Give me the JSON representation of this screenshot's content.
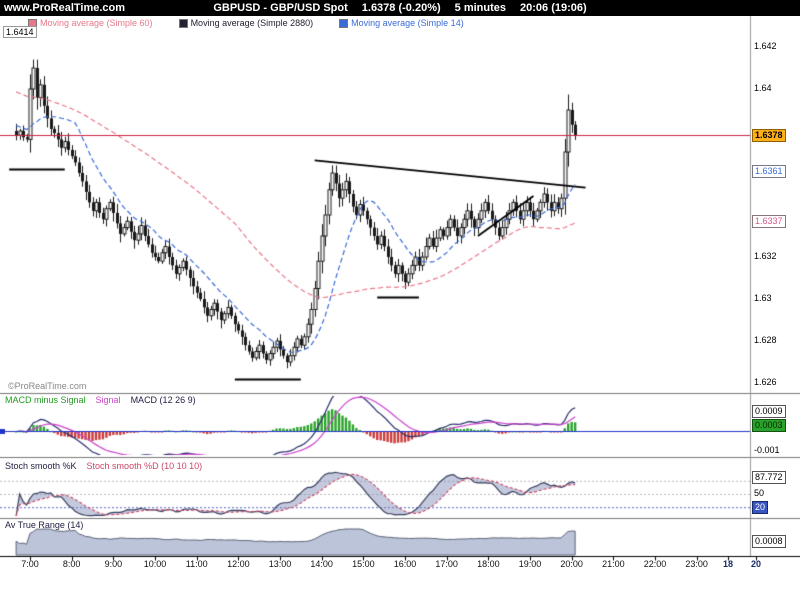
{
  "header": {
    "site": "www.ProRealTime.com",
    "title": "GBPUSD - GBP/USD Spot",
    "price": "1.6378 (-0.20%)",
    "timeframe": "5 minutes",
    "clock": "20:06 (19:06)"
  },
  "ma_legend": [
    {
      "label": "Moving average (Simple 60)",
      "color": "#e8788a"
    },
    {
      "label": "Moving average (Simple 2880)",
      "color": "#222233"
    },
    {
      "label": "Moving average (Simple 14)",
      "color": "#3a6bd6"
    }
  ],
  "session_high_label": "1.6414",
  "watermark": "©ProRealTime.com",
  "price_axis": [
    {
      "label": "1.642",
      "style": "plain"
    },
    {
      "label": "1.64",
      "style": "plain"
    },
    {
      "label": "1.6378",
      "style": "last-price"
    },
    {
      "label": "1.6361",
      "style": "ma14-box"
    },
    {
      "label": "1.6337",
      "style": "ma60-box"
    },
    {
      "label": "1.632",
      "style": "plain"
    },
    {
      "label": "1.63",
      "style": "plain"
    },
    {
      "label": "1.628",
      "style": "plain"
    },
    {
      "label": "1.626",
      "style": "plain"
    }
  ],
  "macd_panel": {
    "legend": [
      {
        "label": "MACD minus Signal",
        "color": "#1f9d1f"
      },
      {
        "label": "Signal",
        "color": "#cc44cc"
      },
      {
        "label": "MACD (12 26 9)",
        "color": "#222244"
      }
    ],
    "axis": [
      {
        "label": "0.0009",
        "style": "box"
      },
      {
        "label": "0.0003",
        "style": "green-box"
      },
      {
        "label": "-0.001",
        "style": "plain"
      }
    ]
  },
  "stoch_panel": {
    "legend": [
      {
        "label": "Stoch smooth %K",
        "color": "#222244"
      },
      {
        "label": "Stoch smooth %D (10 10 10)",
        "color": "#cc4466"
      }
    ],
    "axis": [
      {
        "label": "87.772",
        "style": "box"
      },
      {
        "label": "50",
        "style": "plain"
      },
      {
        "label": "20",
        "style": "blue-box"
      }
    ]
  },
  "atr_panel": {
    "legend": [
      {
        "label": "Av True Range (14)",
        "color": "#222244"
      }
    ],
    "axis": [
      {
        "label": "0.0008",
        "style": "box"
      }
    ]
  },
  "time_axis": [
    "7:00",
    "8:00",
    "9:00",
    "10:00",
    "11:00",
    "12:00",
    "13:00",
    "14:00",
    "15:00",
    "16:00",
    "17:00",
    "18:00",
    "19:00",
    "20:00",
    "21:00",
    "22:00",
    "23:00",
    "18",
    "20"
  ],
  "chart_data": {
    "type": "candlestick",
    "symbol": "GBPUSD",
    "title": "GBPUSD - GBP/USD Spot, 5 minute bars",
    "interval_minutes": 5,
    "start_time": "6:40",
    "ylim": [
      1.626,
      1.642
    ],
    "session_high": 1.6414,
    "last_price": 1.6378,
    "ma14_last": 1.6361,
    "ma60_last": 1.6337,
    "closes_x10000": [
      16378,
      16380,
      16377,
      16376,
      16400,
      16410,
      16396,
      16402,
      16392,
      16386,
      16381,
      16379,
      16376,
      16372,
      16375,
      16371,
      16368,
      16365,
      16360,
      16356,
      16351,
      16346,
      16342,
      16346,
      16341,
      16338,
      16343,
      16346,
      16341,
      16336,
      16331,
      16334,
      16337,
      16332,
      16328,
      16331,
      16335,
      16330,
      16326,
      16322,
      16320,
      16318,
      16322,
      16325,
      16320,
      16316,
      16312,
      16315,
      16318,
      16314,
      16310,
      16306,
      16303,
      16300,
      16296,
      16292,
      16295,
      16298,
      16294,
      16290,
      16293,
      16296,
      16292,
      16288,
      16285,
      16282,
      16278,
      16275,
      16272,
      16275,
      16278,
      16274,
      16271,
      16274,
      16277,
      16280,
      16276,
      16273,
      16270,
      16273,
      16277,
      16281,
      16278,
      16282,
      16288,
      16295,
      16305,
      16318,
      16330,
      16340,
      16352,
      16360,
      16355,
      16348,
      16352,
      16356,
      16350,
      16344,
      16340,
      16345,
      16342,
      16338,
      16334,
      16330,
      16326,
      16330,
      16325,
      16320,
      16316,
      16312,
      16316,
      16312,
      16308,
      16312,
      16316,
      16320,
      16316,
      16320,
      16325,
      16329,
      16325,
      16329,
      16333,
      16330,
      16334,
      16338,
      16334,
      16330,
      16334,
      16338,
      16342,
      16338,
      16334,
      16338,
      16342,
      16346,
      16342,
      16338,
      16334,
      16330,
      16334,
      16338,
      16342,
      16346,
      16342,
      16338,
      16342,
      16346,
      16342,
      16338,
      16342,
      16346,
      16350,
      16346,
      16342,
      16346,
      16343,
      16348,
      16370,
      16390,
      16383,
      16378
    ],
    "horizontal_line": {
      "price": 1.6378,
      "color": "#cc2244"
    },
    "support_segments": [
      {
        "t1": "6:30",
        "t2": "7:50",
        "price": 1.6362
      },
      {
        "t1": "11:55",
        "t2": "13:30",
        "price": 1.6262
      },
      {
        "t1": "15:20",
        "t2": "16:20",
        "price": 1.6301
      }
    ],
    "trendlines": [
      {
        "t1": "13:50",
        "p1": 1.6366,
        "t2": "20:20",
        "p2": 1.6353
      },
      {
        "t1": "17:45",
        "p1": 1.633,
        "t2": "19:05",
        "p2": 1.6349
      }
    ],
    "indicators": {
      "ma14": {
        "type": "sma",
        "period": 14
      },
      "ma60": {
        "type": "sma",
        "period": 60
      },
      "ma2880": {
        "type": "sma",
        "period": 2880,
        "note": "above visible price range"
      },
      "macd": {
        "fast": 12,
        "slow": 26,
        "signal": 9
      },
      "stochastic": {
        "k": 10,
        "d": 10,
        "smooth": 10,
        "last_k": 87.772
      },
      "atr": {
        "period": 14,
        "last": 0.0008
      }
    },
    "colors": {
      "candle": "#1a1a1a",
      "macd_pos": "#2ba32b",
      "macd_neg": "#cc3b3b",
      "macd_line": "#27306b",
      "signal_line": "#cc44cc",
      "zero_line": "#2233cc",
      "stoch_k": "#39405e",
      "stoch_d": "#cc4466",
      "stoch_fill": "rgba(125,135,180,0.45)",
      "atr_fill": "#bcc4da",
      "atr_line": "#5a6275"
    }
  }
}
